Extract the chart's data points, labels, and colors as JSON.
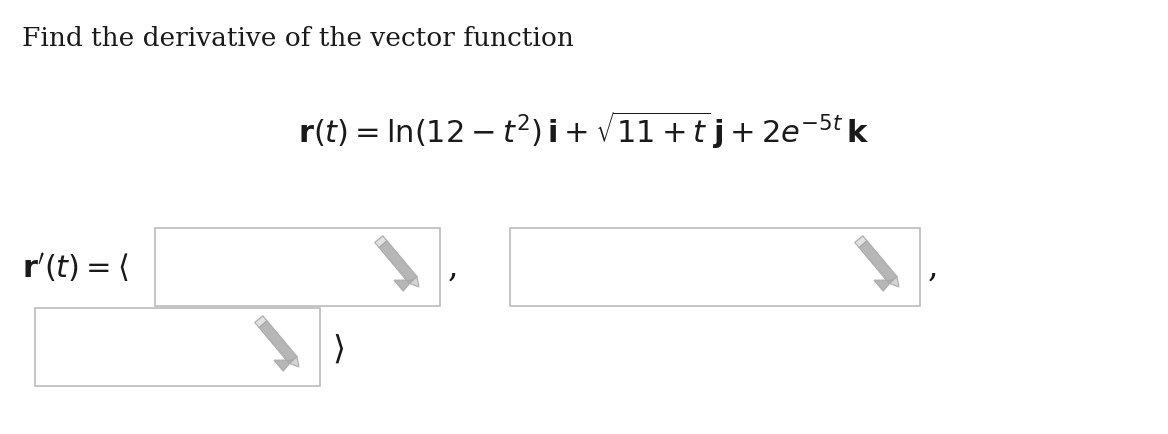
{
  "background_color": "#ffffff",
  "title_text": "Find the derivative of the vector function",
  "title_fontsize": 19,
  "title_color": "#1a1a1a",
  "equation_text": "$\\mathbf{r}(t) = \\ln(12 - t^2)\\,\\mathbf{i} + \\sqrt{11 + t}\\,\\mathbf{j} + 2e^{-5t}\\,\\mathbf{k}$",
  "equation_fontsize": 22,
  "equation_color": "#1a1a1a",
  "label_text": "$\\mathbf{r}'(t) = \\langle$",
  "label_fontsize": 22,
  "label_color": "#1a1a1a",
  "box_face_color": "#ffffff",
  "box_edge_color": "#bbbbbb",
  "icon_color": "#aaaaaa",
  "comma_fontsize": 24,
  "bracket_fontsize": 24,
  "bracket_color": "#1a1a1a"
}
